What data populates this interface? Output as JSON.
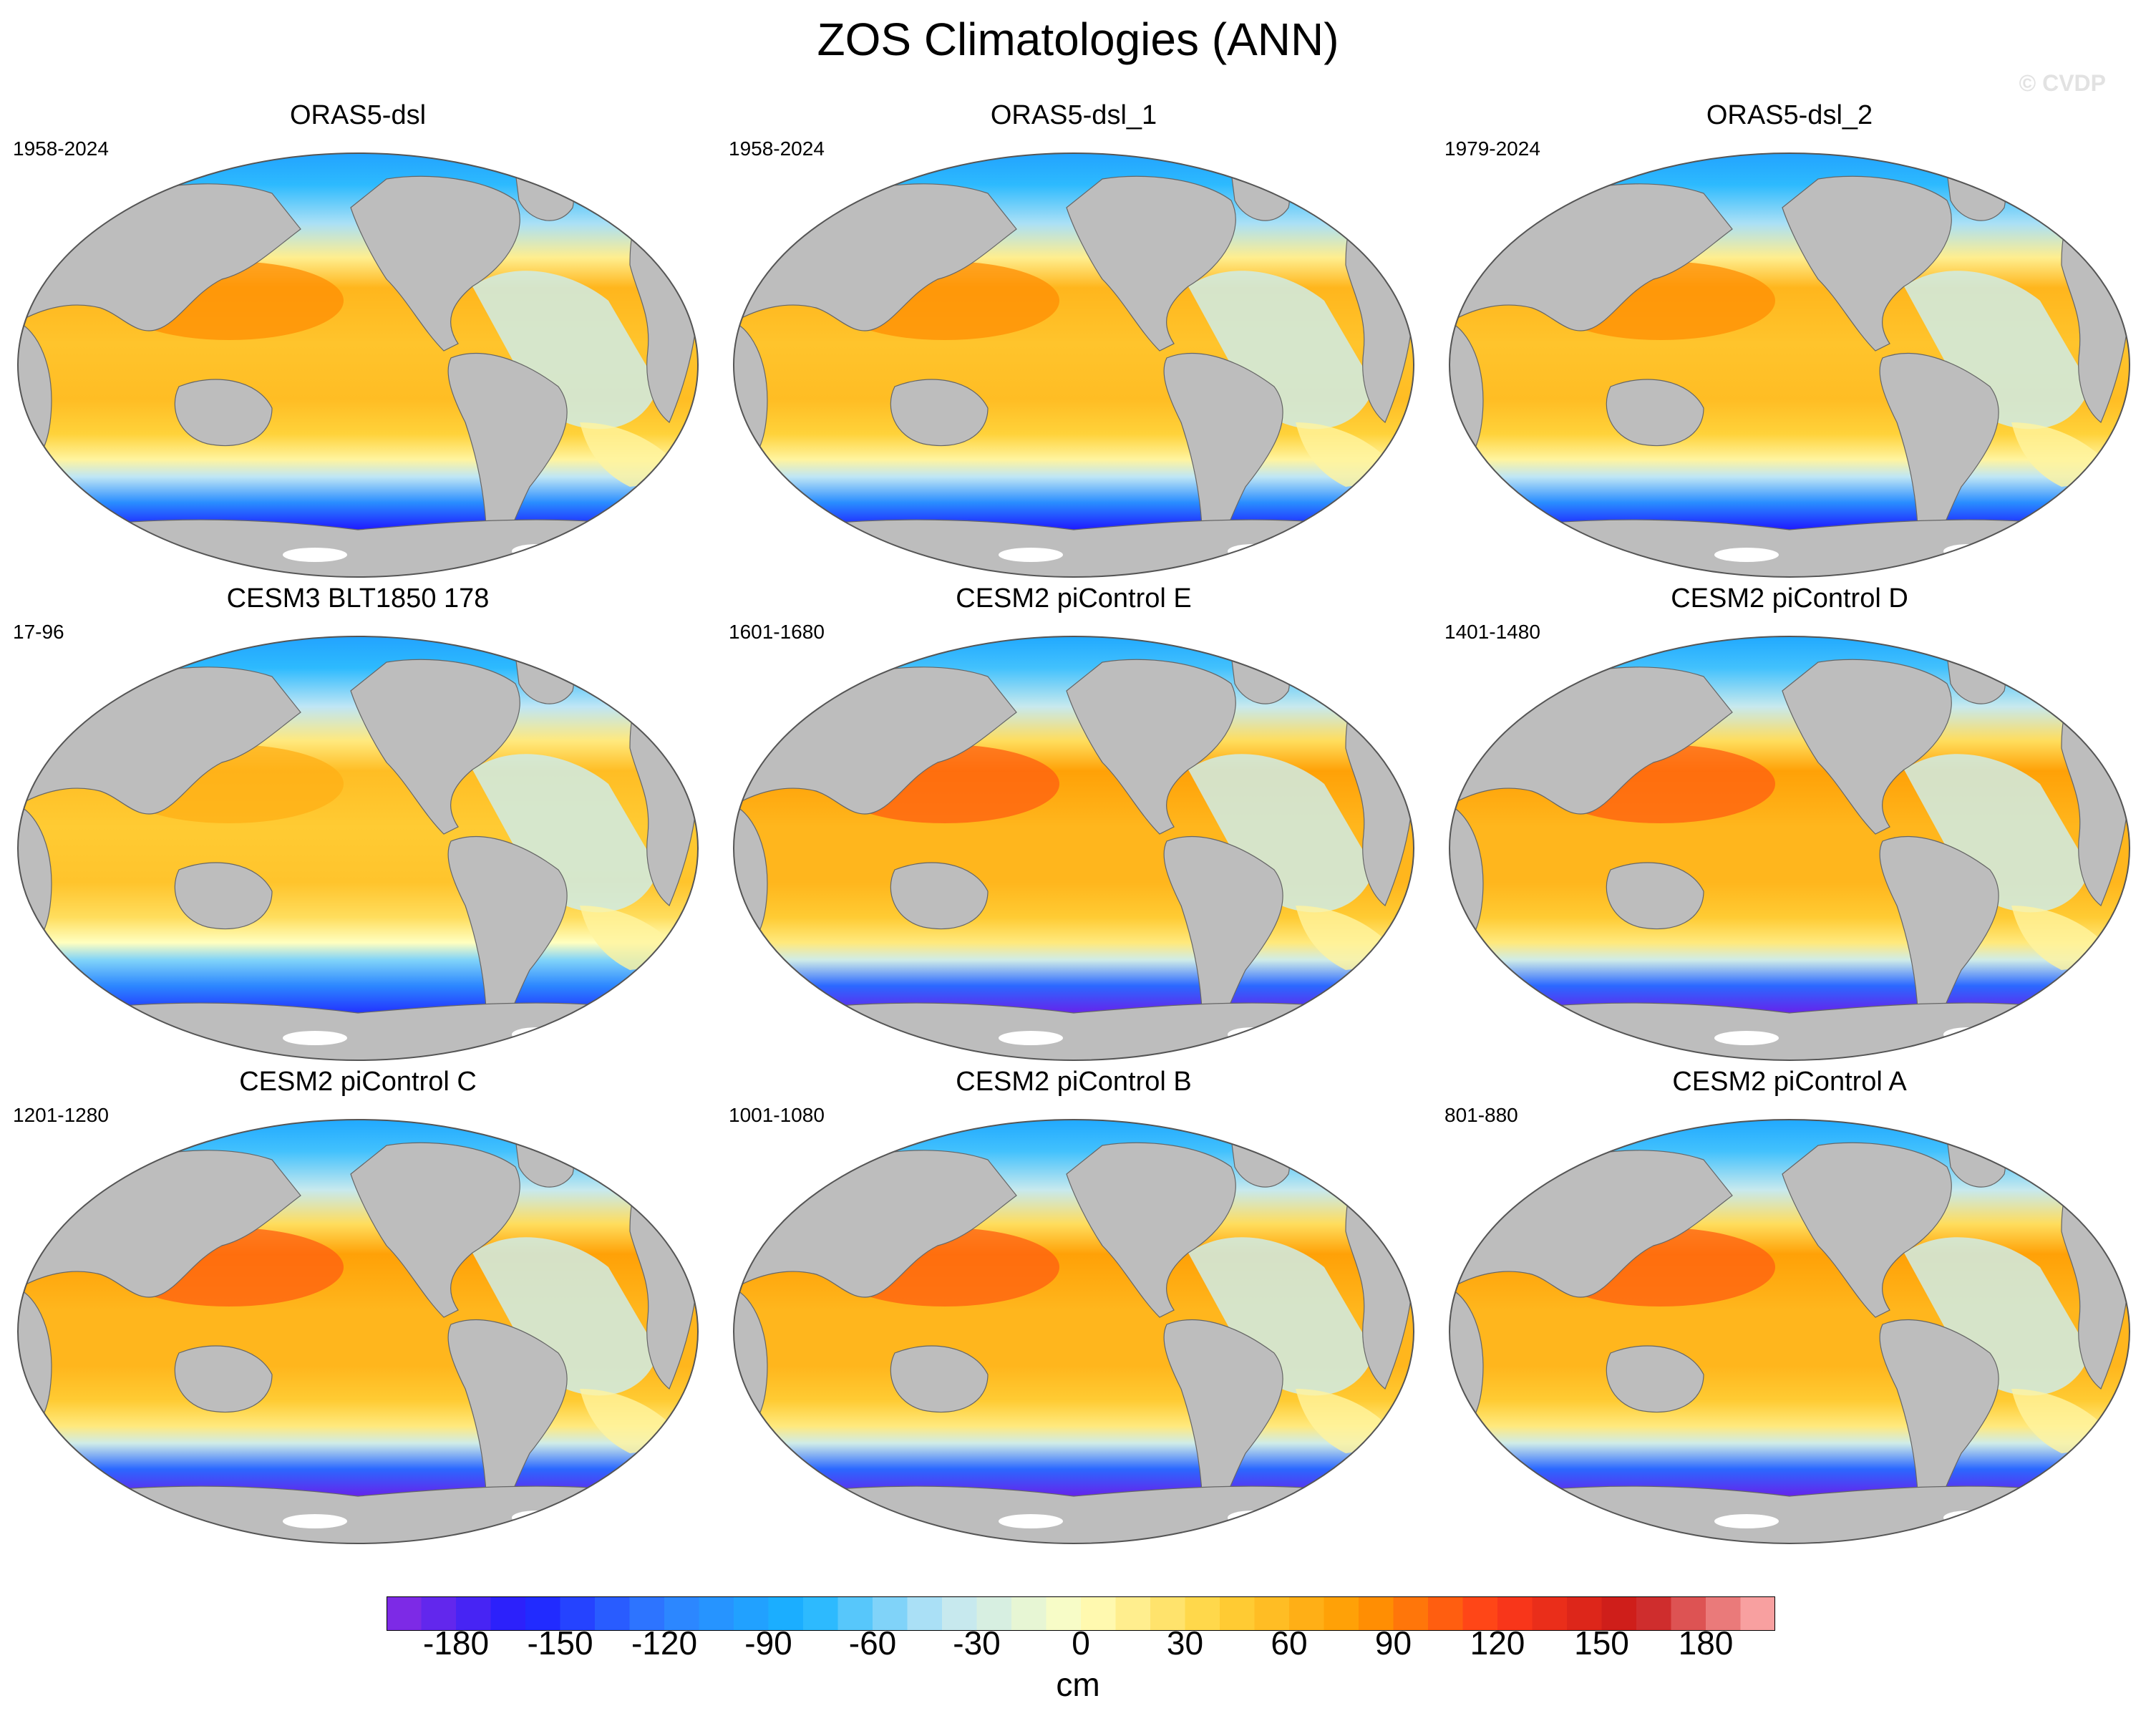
{
  "title": "ZOS Climatologies (ANN)",
  "watermark": "© CVDP",
  "panels": [
    {
      "title": "ORAS5-dsl",
      "period": "1958-2024",
      "variant": "obs"
    },
    {
      "title": "ORAS5-dsl_1",
      "period": "1958-2024",
      "variant": "obs"
    },
    {
      "title": "ORAS5-dsl_2",
      "period": "1979-2024",
      "variant": "obs"
    },
    {
      "title": "CESM3 BLT1850 178",
      "period": "17-96",
      "variant": "cesm3"
    },
    {
      "title": "CESM2 piControl E",
      "period": "1601-1680",
      "variant": "cesm2"
    },
    {
      "title": "CESM2 piControl D",
      "period": "1401-1480",
      "variant": "cesm2"
    },
    {
      "title": "CESM2 piControl C",
      "period": "1201-1280",
      "variant": "cesm2"
    },
    {
      "title": "CESM2 piControl B",
      "period": "1001-1080",
      "variant": "cesm2"
    },
    {
      "title": "CESM2 piControl A",
      "period": "801-880",
      "variant": "cesm2"
    }
  ],
  "colorbar": {
    "units": "cm",
    "min": -200,
    "max": 200,
    "step": 10,
    "tick_labels": [
      "-180",
      "-150",
      "-120",
      "-90",
      "-60",
      "-30",
      "0",
      "30",
      "60",
      "90",
      "120",
      "150",
      "180"
    ],
    "tick_values": [
      -180,
      -150,
      -120,
      -90,
      -60,
      -30,
      0,
      30,
      60,
      90,
      120,
      150,
      180
    ]
  },
  "colors": {
    "land": "#bdbdbd",
    "ice_shelf": "#ffffff",
    "stops": [
      "#8a2be2",
      "#1f1fff",
      "#2f80ff",
      "#18b4ff",
      "#bfe6f5",
      "#ffffc0",
      "#ffd23a",
      "#ff9a00",
      "#ff3a1a",
      "#c81a1a",
      "#ffb3b3"
    ]
  }
}
